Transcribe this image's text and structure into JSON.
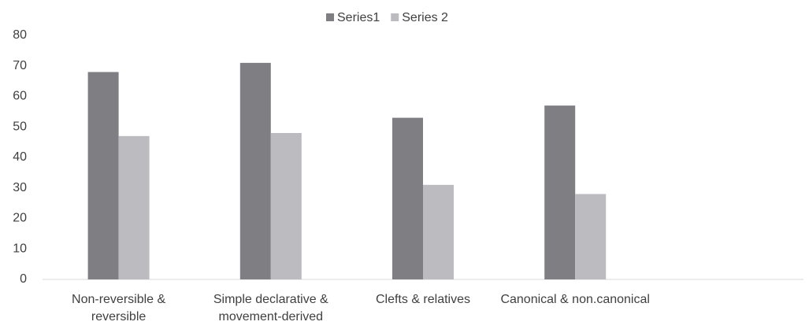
{
  "chart_data": {
    "type": "bar",
    "categories": [
      "Non-reversible & reversible",
      "Simple declarative & movement-derived",
      "Clefts & relatives",
      "Canonical & non.canonical",
      null
    ],
    "series": [
      {
        "name": "Series1",
        "color": "#7f7f83",
        "values": [
          68,
          71,
          53,
          57,
          null
        ]
      },
      {
        "name": "Series 2",
        "color": "#bcbcc0",
        "values": [
          47,
          48,
          31,
          28,
          null
        ]
      }
    ],
    "ylim": [
      0,
      80
    ],
    "yticks": [
      0,
      10,
      20,
      30,
      40,
      50,
      60,
      70,
      80
    ],
    "grid": false,
    "legend": "top"
  }
}
